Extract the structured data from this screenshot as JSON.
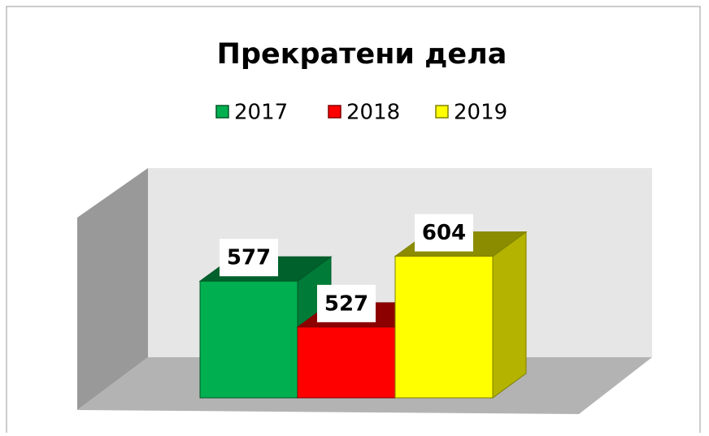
{
  "chart_data": {
    "type": "bar3d",
    "title": "Прекратени дела",
    "series": [
      {
        "name": "2017",
        "color": "#00b050",
        "values": [
          577
        ]
      },
      {
        "name": "2018",
        "color": "#ff0000",
        "values": [
          527
        ]
      },
      {
        "name": "2019",
        "color": "#ffff00",
        "values": [
          604
        ]
      }
    ],
    "ylim": [
      450,
      700
    ],
    "legend": "top"
  }
}
